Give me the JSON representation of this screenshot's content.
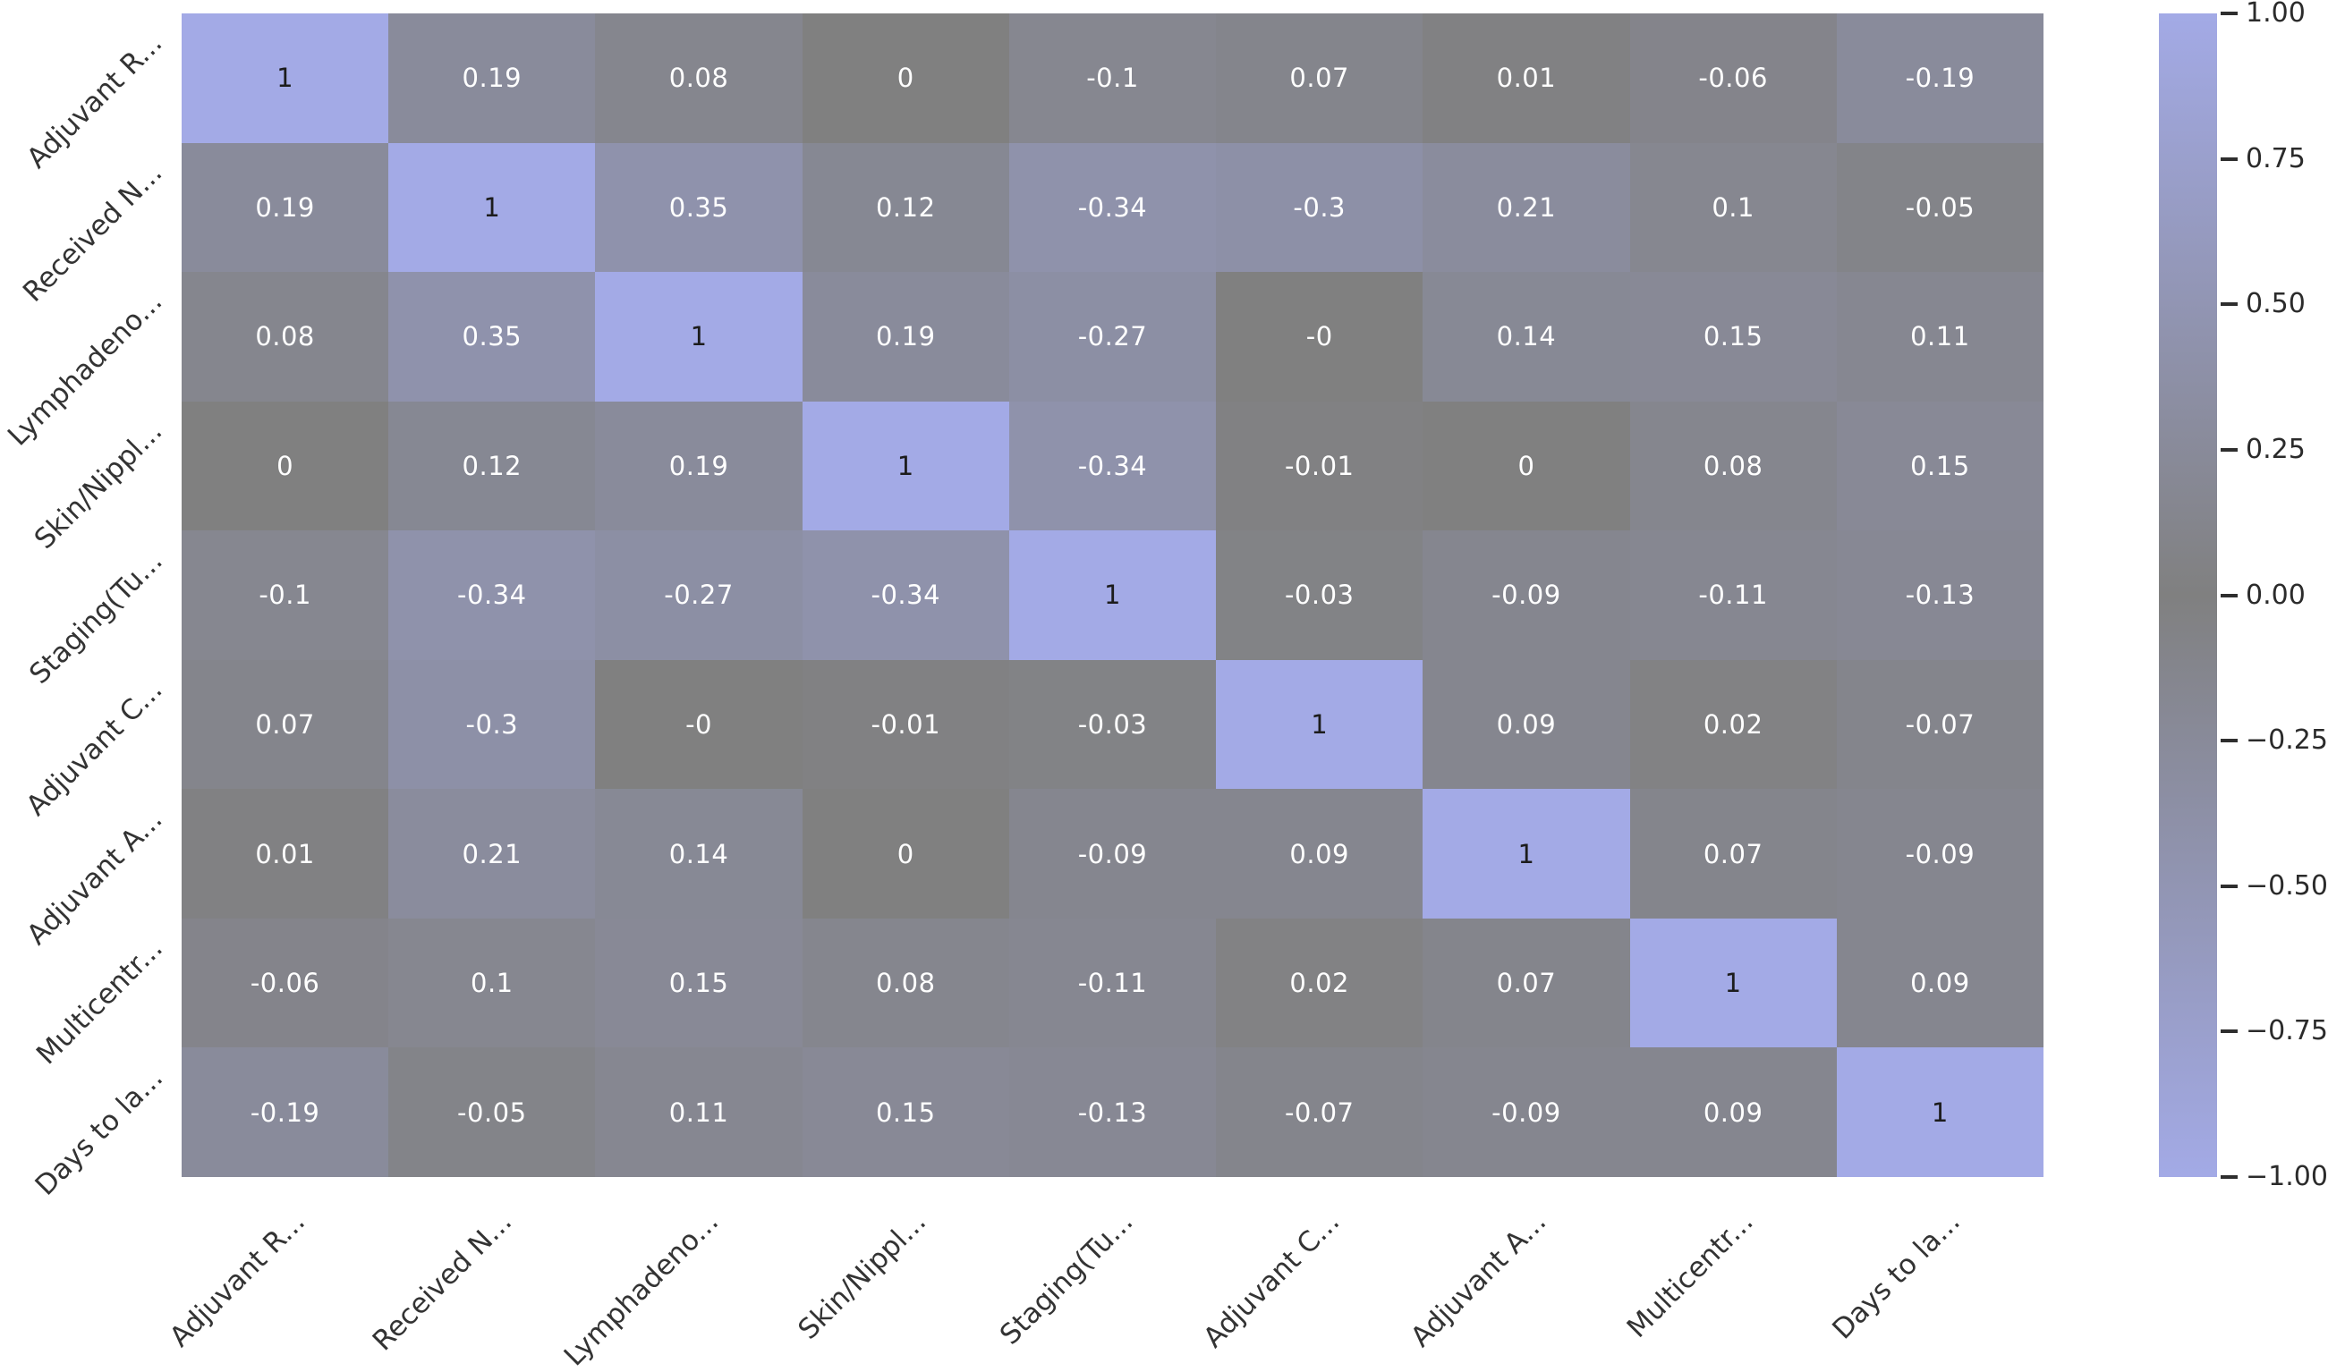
{
  "chart_data": {
    "type": "heatmap",
    "title": "",
    "categories": [
      "Adjuvant R...",
      "Received N...",
      "Lymphadeno...",
      "Skin/Nippl...",
      "Staging(Tu...",
      "Adjuvant C...",
      "Adjuvant A...",
      "Multicentr...",
      "Days to la..."
    ],
    "matrix": [
      [
        1,
        0.19,
        0.08,
        0,
        -0.1,
        0.07,
        0.01,
        -0.06,
        -0.19
      ],
      [
        0.19,
        1,
        0.35,
        0.12,
        -0.34,
        -0.3,
        0.21,
        0.1,
        -0.05
      ],
      [
        0.08,
        0.35,
        1,
        0.19,
        -0.27,
        0,
        0.14,
        0.15,
        0.11
      ],
      [
        0,
        0.12,
        0.19,
        1,
        -0.34,
        -0.01,
        0,
        0.08,
        0.15
      ],
      [
        -0.1,
        -0.34,
        -0.27,
        -0.34,
        1,
        -0.03,
        -0.09,
        -0.11,
        -0.13
      ],
      [
        0.07,
        -0.3,
        0,
        -0.01,
        -0.03,
        1,
        0.09,
        0.02,
        -0.07
      ],
      [
        0.01,
        0.21,
        0.14,
        0,
        -0.09,
        0.09,
        1,
        0.07,
        -0.09
      ],
      [
        -0.06,
        0.1,
        0.15,
        0.08,
        -0.11,
        0.02,
        0.07,
        1,
        0.09
      ],
      [
        -0.19,
        -0.05,
        0.11,
        0.15,
        -0.13,
        -0.07,
        -0.09,
        0.09,
        1
      ]
    ],
    "annotations": [
      [
        "1",
        "0.19",
        "0.08",
        "0",
        "-0.1",
        "0.07",
        "0.01",
        "-0.06",
        "-0.19"
      ],
      [
        "0.19",
        "1",
        "0.35",
        "0.12",
        "-0.34",
        "-0.3",
        "0.21",
        "0.1",
        "-0.05"
      ],
      [
        "0.08",
        "0.35",
        "1",
        "0.19",
        "-0.27",
        "-0",
        "0.14",
        "0.15",
        "0.11"
      ],
      [
        "0",
        "0.12",
        "0.19",
        "1",
        "-0.34",
        "-0.01",
        "0",
        "0.08",
        "0.15"
      ],
      [
        "-0.1",
        "-0.34",
        "-0.27",
        "-0.34",
        "1",
        "-0.03",
        "-0.09",
        "-0.11",
        "-0.13"
      ],
      [
        "0.07",
        "-0.3",
        "-0",
        "-0.01",
        "-0.03",
        "1",
        "0.09",
        "0.02",
        "-0.07"
      ],
      [
        "0.01",
        "0.21",
        "0.14",
        "0",
        "-0.09",
        "0.09",
        "1",
        "0.07",
        "-0.09"
      ],
      [
        "-0.06",
        "0.1",
        "0.15",
        "0.08",
        "-0.11",
        "0.02",
        "0.07",
        "1",
        "0.09"
      ],
      [
        "-0.19",
        "-0.05",
        "0.11",
        "0.15",
        "-0.13",
        "-0.07",
        "-0.09",
        "0.09",
        "1"
      ]
    ],
    "vmin": -1,
    "vmax": 1,
    "grid": false,
    "legend_position": "right-colorbar",
    "colorbar_ticks": [
      "1.00",
      "0.75",
      "0.50",
      "0.25",
      "0.00",
      "−0.25",
      "−0.50",
      "−0.75",
      "−1.00"
    ],
    "colors": {
      "cell_extreme": "#a3aae6",
      "cell_zero": "#808080",
      "annotation_text": "#ffffff",
      "annotation_text_on_light": "#1c1c1c",
      "tick_text": "#333333",
      "background": "#ffffff"
    }
  }
}
